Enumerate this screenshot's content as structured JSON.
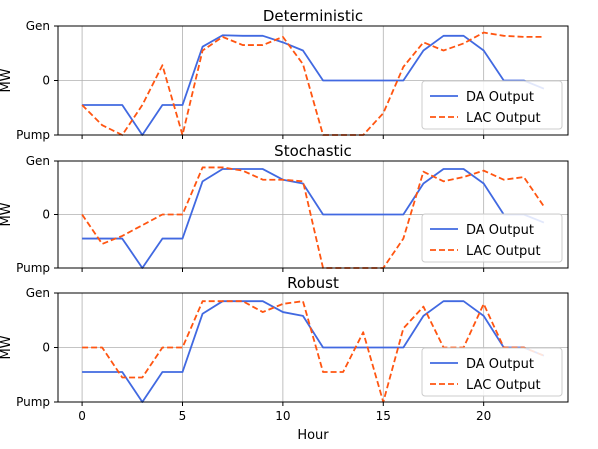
{
  "chart_data": [
    {
      "type": "line",
      "title": "Deterministic",
      "ylabel": "MW",
      "xlabel": "",
      "x": [
        0,
        1,
        2,
        3,
        4,
        5,
        6,
        7,
        8,
        9,
        10,
        11,
        12,
        13,
        14,
        15,
        16,
        17,
        18,
        19,
        20,
        21,
        22,
        23
      ],
      "xticks": [
        0,
        5,
        10,
        15,
        20
      ],
      "xtick_labels_visible": false,
      "xlim": [
        -1.2,
        24.2
      ],
      "ylim": [
        -1.0,
        1.0
      ],
      "yticks": [
        {
          "value": 1.0,
          "label": "Gen"
        },
        {
          "value": 0,
          "label": "0"
        },
        {
          "value": -1.0,
          "label": "Pump"
        }
      ],
      "grid": true,
      "legend_position": "lower-right",
      "series": [
        {
          "name": "DA Output",
          "color": "#4169e1",
          "style": "solid",
          "values": [
            -0.45,
            -0.45,
            -0.45,
            -1.0,
            -0.45,
            -0.45,
            0.62,
            0.83,
            0.82,
            0.82,
            0.7,
            0.55,
            0,
            0,
            0,
            0,
            0,
            0.55,
            0.82,
            0.82,
            0.55,
            0,
            0,
            -0.15
          ]
        },
        {
          "name": "LAC Output",
          "color": "#ff5511",
          "style": "dashed",
          "values": [
            -0.45,
            -0.82,
            -1.0,
            -0.45,
            0.28,
            -1.0,
            0.55,
            0.8,
            0.65,
            0.65,
            0.8,
            0.3,
            -1.0,
            -1.0,
            -1.0,
            -0.6,
            0.25,
            0.7,
            0.55,
            0.68,
            0.88,
            0.82,
            0.8,
            0.8
          ]
        }
      ]
    },
    {
      "type": "line",
      "title": "Stochastic",
      "ylabel": "MW",
      "xlabel": "",
      "x": [
        0,
        1,
        2,
        3,
        4,
        5,
        6,
        7,
        8,
        9,
        10,
        11,
        12,
        13,
        14,
        15,
        16,
        17,
        18,
        19,
        20,
        21,
        22,
        23
      ],
      "xticks": [
        0,
        5,
        10,
        15,
        20
      ],
      "xtick_labels_visible": false,
      "xlim": [
        -1.2,
        24.2
      ],
      "ylim": [
        -1.0,
        1.0
      ],
      "yticks": [
        {
          "value": 1.0,
          "label": "Gen"
        },
        {
          "value": 0,
          "label": "0"
        },
        {
          "value": -1.0,
          "label": "Pump"
        }
      ],
      "grid": true,
      "legend_position": "lower-right",
      "series": [
        {
          "name": "DA Output",
          "color": "#4169e1",
          "style": "solid",
          "values": [
            -0.45,
            -0.45,
            -0.45,
            -1.0,
            -0.45,
            -0.45,
            0.62,
            0.85,
            0.85,
            0.85,
            0.65,
            0.58,
            0,
            0,
            0,
            0,
            0,
            0.58,
            0.85,
            0.85,
            0.58,
            0,
            0,
            -0.15
          ]
        },
        {
          "name": "LAC Output",
          "color": "#ff5511",
          "style": "dashed",
          "values": [
            0,
            -0.55,
            -0.4,
            -0.2,
            0,
            0,
            0.88,
            0.88,
            0.82,
            0.65,
            0.65,
            0.62,
            -1.0,
            -1.0,
            -1.0,
            -1.0,
            -0.45,
            0.8,
            0.62,
            0.7,
            0.82,
            0.65,
            0.7,
            0.15
          ]
        }
      ]
    },
    {
      "type": "line",
      "title": "Robust",
      "ylabel": "MW",
      "xlabel": "Hour",
      "x": [
        0,
        1,
        2,
        3,
        4,
        5,
        6,
        7,
        8,
        9,
        10,
        11,
        12,
        13,
        14,
        15,
        16,
        17,
        18,
        19,
        20,
        21,
        22,
        23
      ],
      "xticks": [
        0,
        5,
        10,
        15,
        20
      ],
      "xtick_labels_visible": true,
      "xlim": [
        -1.2,
        24.2
      ],
      "ylim": [
        -1.0,
        1.0
      ],
      "yticks": [
        {
          "value": 1.0,
          "label": "Gen"
        },
        {
          "value": 0,
          "label": "0"
        },
        {
          "value": -1.0,
          "label": "Pump"
        }
      ],
      "grid": true,
      "legend_position": "lower-right",
      "series": [
        {
          "name": "DA Output",
          "color": "#4169e1",
          "style": "solid",
          "values": [
            -0.45,
            -0.45,
            -0.45,
            -1.0,
            -0.45,
            -0.45,
            0.62,
            0.85,
            0.85,
            0.85,
            0.65,
            0.58,
            0,
            0,
            0,
            0,
            0,
            0.58,
            0.85,
            0.85,
            0.58,
            0,
            0,
            -0.15
          ]
        },
        {
          "name": "LAC Output",
          "color": "#ff5511",
          "style": "dashed",
          "values": [
            0,
            0,
            -0.55,
            -0.55,
            0,
            0,
            0.85,
            0.85,
            0.85,
            0.65,
            0.8,
            0.85,
            -0.45,
            -0.45,
            0.28,
            -1.0,
            0.35,
            0.75,
            0,
            0,
            0.8,
            0,
            0,
            -0.15
          ]
        }
      ]
    }
  ]
}
